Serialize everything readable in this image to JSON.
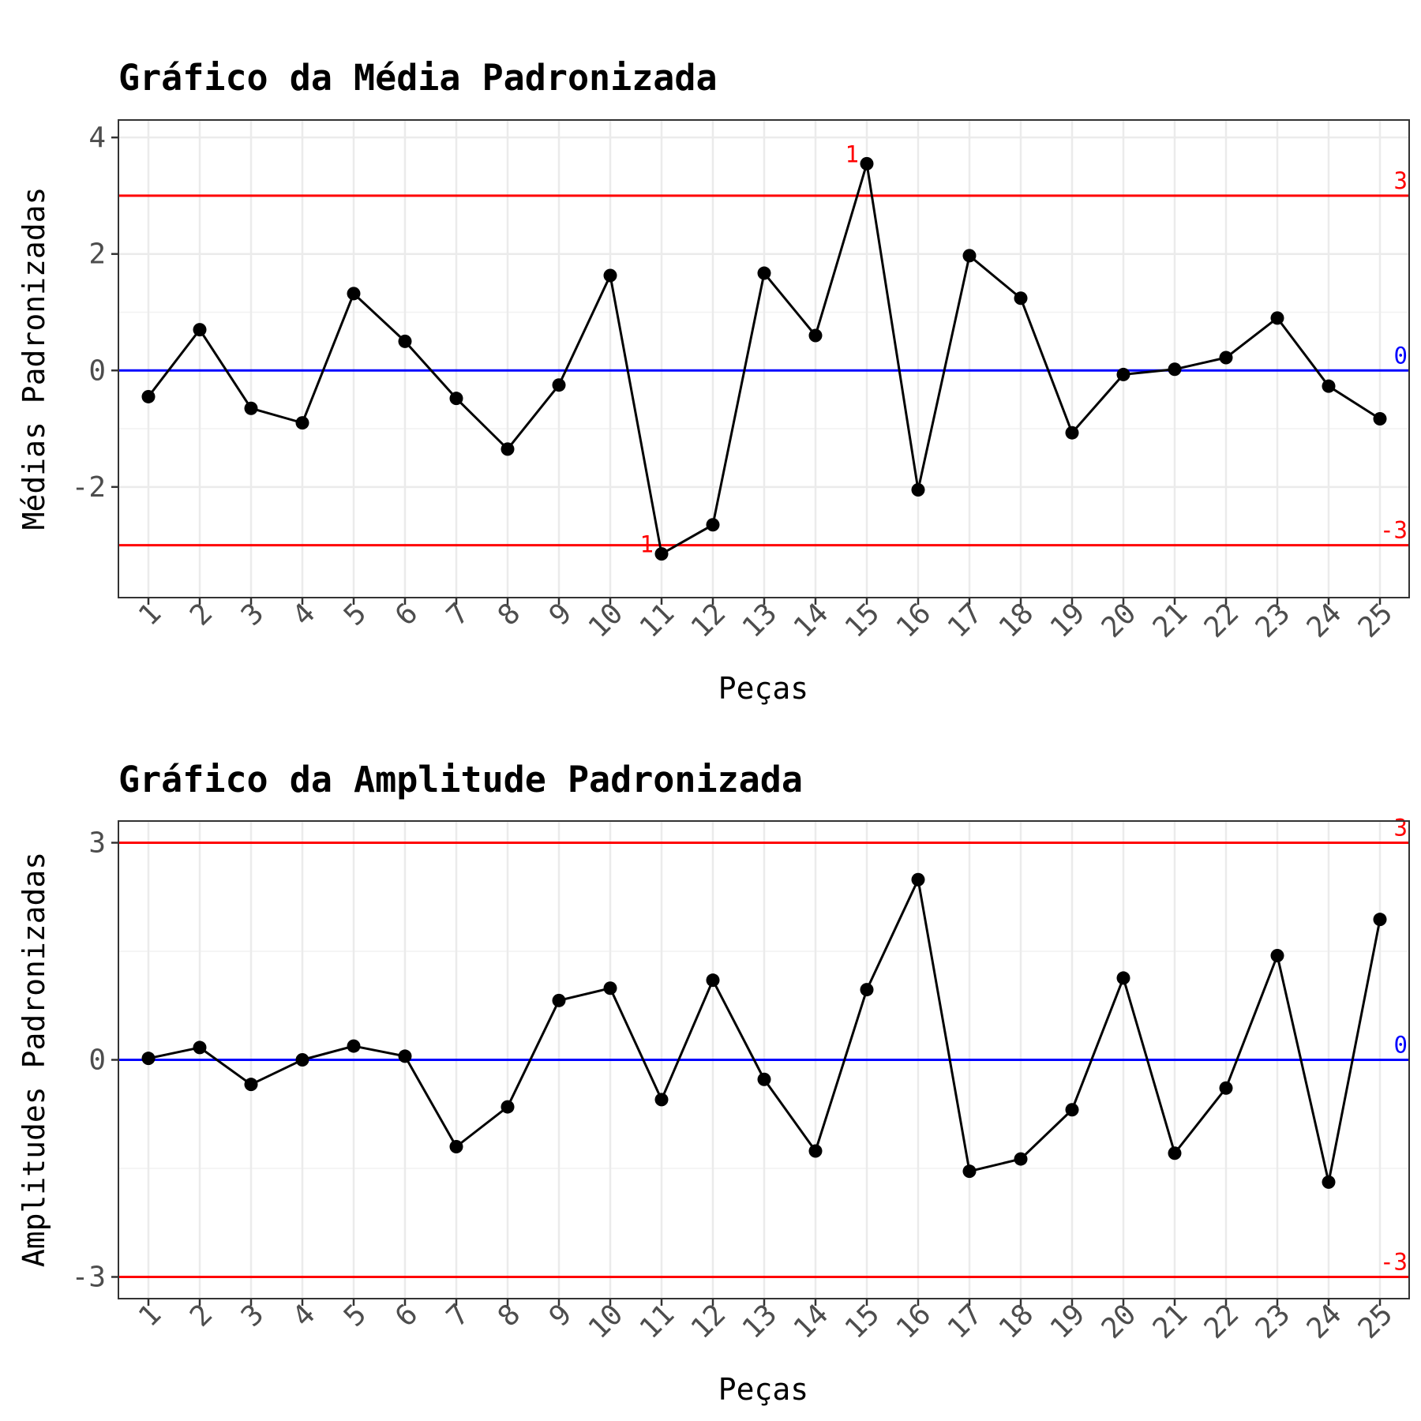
{
  "chart_data": [
    {
      "type": "line",
      "title": "Gráfico da Média Padronizada",
      "xlabel": "Peças",
      "ylabel": "Médias Padronizadas",
      "x_ticks": [
        "1",
        "2",
        "3",
        "4",
        "5",
        "6",
        "7",
        "8",
        "9",
        "10",
        "11",
        "12",
        "13",
        "14",
        "15",
        "16",
        "17",
        "18",
        "19",
        "20",
        "21",
        "22",
        "23",
        "24",
        "25"
      ],
      "y_ticks": [
        -2,
        0,
        2,
        4
      ],
      "y_tick_labels": [
        "-2",
        "0",
        "2",
        "4"
      ],
      "ylim": [
        -3.9,
        4.3
      ],
      "grid": true,
      "series": [
        {
          "values": [
            -0.45,
            0.7,
            -0.65,
            -0.9,
            1.32,
            0.5,
            -0.48,
            -1.35,
            -0.25,
            1.63,
            -3.15,
            -2.65,
            1.67,
            0.6,
            3.55,
            -2.05,
            1.97,
            1.24,
            -1.07,
            -0.07,
            0.02,
            0.22,
            0.9,
            -0.27,
            -0.83
          ]
        }
      ],
      "reference_lines": [
        {
          "value": 3,
          "label": "3",
          "color": "#ff0000"
        },
        {
          "value": 0,
          "label": "0",
          "color": "#0000ff"
        },
        {
          "value": -3,
          "label": "-3",
          "color": "#ff0000"
        }
      ],
      "annotations": [
        {
          "x": "11",
          "y": -3.15,
          "text": "1",
          "color": "#ff0000"
        },
        {
          "x": "15",
          "y": 3.55,
          "text": "1",
          "color": "#ff0000"
        }
      ]
    },
    {
      "type": "line",
      "title": "Gráfico da Amplitude Padronizada",
      "xlabel": "Peças",
      "ylabel": "Amplitudes Padronizadas",
      "x_ticks": [
        "1",
        "2",
        "3",
        "4",
        "5",
        "6",
        "7",
        "8",
        "9",
        "10",
        "11",
        "12",
        "13",
        "14",
        "15",
        "16",
        "17",
        "18",
        "19",
        "20",
        "21",
        "22",
        "23",
        "24",
        "25"
      ],
      "y_ticks": [
        -3,
        0,
        3
      ],
      "y_tick_labels": [
        "-3",
        "0",
        "3"
      ],
      "ylim": [
        -3.3,
        3.3
      ],
      "grid": true,
      "series": [
        {
          "values": [
            0.02,
            0.17,
            -0.34,
            0.0,
            0.19,
            0.05,
            -1.2,
            -0.65,
            0.82,
            0.99,
            -0.55,
            1.1,
            -0.27,
            -1.26,
            0.97,
            2.49,
            -1.54,
            -1.37,
            -0.69,
            1.13,
            -1.29,
            -0.39,
            1.44,
            -1.69,
            1.94
          ]
        }
      ],
      "reference_lines": [
        {
          "value": 3,
          "label": "3",
          "color": "#ff0000"
        },
        {
          "value": 0,
          "label": "0",
          "color": "#0000ff"
        },
        {
          "value": -3,
          "label": "-3",
          "color": "#ff0000"
        }
      ],
      "annotations": []
    }
  ]
}
